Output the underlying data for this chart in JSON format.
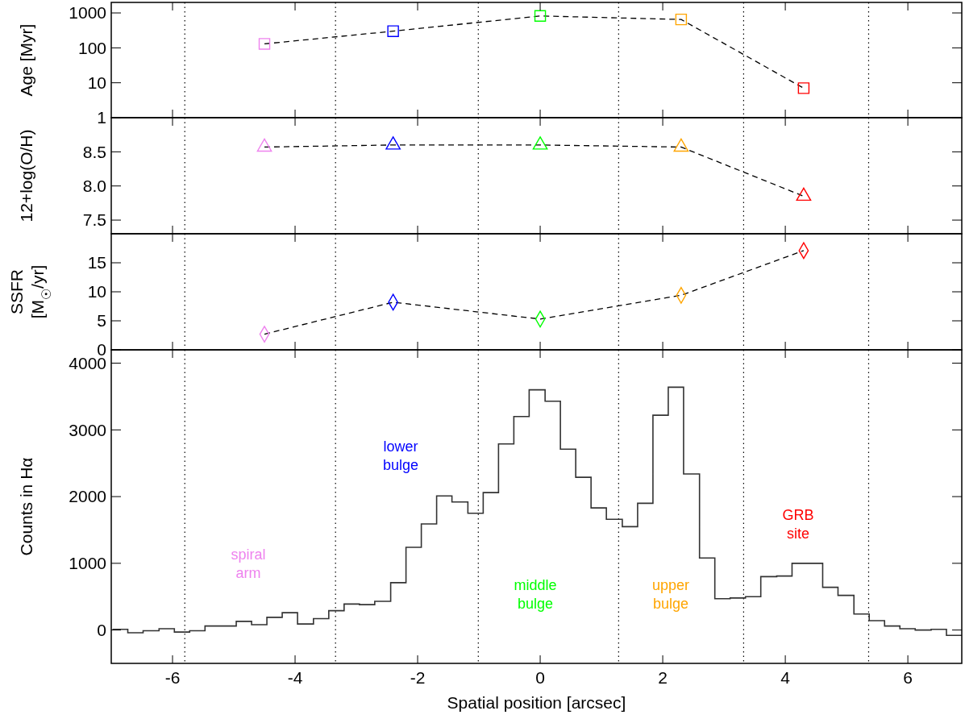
{
  "chart_data": [
    {
      "type": "line",
      "ylabel": "Age [Myr]",
      "x": [
        -4.5,
        -2.4,
        0,
        2.3,
        4.3
      ],
      "values": [
        130,
        300,
        820,
        650,
        7
      ],
      "color": "#000000",
      "colors": [
        "#ee82ee",
        "#0000ff",
        "#00ff00",
        "#ffa500",
        "#ff0000"
      ],
      "marker": "square",
      "line_style": "dashed",
      "log": "y",
      "xlim": [
        -7,
        6.88
      ],
      "xticks": [
        -6,
        -4,
        -2,
        0,
        2,
        4,
        6
      ],
      "ylim": [
        1,
        2000
      ],
      "yticks": [
        1,
        10,
        100,
        1000
      ],
      "tick_labels": "y",
      "ref_lines": [
        {
          "axis": "x",
          "value": -5.8,
          "line_style": "dotted"
        },
        {
          "axis": "x",
          "value": -3.34,
          "line_style": "dotted"
        },
        {
          "axis": "x",
          "value": -1.01,
          "line_style": "dotted"
        },
        {
          "axis": "x",
          "value": 1.28,
          "line_style": "dotted"
        },
        {
          "axis": "x",
          "value": 3.32,
          "line_style": "dotted"
        },
        {
          "axis": "x",
          "value": 5.36,
          "line_style": "dotted"
        }
      ]
    },
    {
      "type": "line",
      "ylabel": "12+log(O/H)",
      "x": [
        -4.5,
        -2.4,
        0,
        2.3,
        4.3
      ],
      "values": [
        8.57,
        8.6,
        8.6,
        8.57,
        7.85
      ],
      "color": "#000000",
      "colors": [
        "#ee82ee",
        "#0000ff",
        "#00ff00",
        "#ffa500",
        "#ff0000"
      ],
      "marker": "triangle",
      "line_style": "dashed",
      "xlim": [
        -7,
        6.88
      ],
      "xticks": [
        -6,
        -4,
        -2,
        0,
        2,
        4,
        6
      ],
      "ylim": [
        7.3,
        9.0
      ],
      "yticks": [
        7.5,
        {
          "value": 8,
          "label": "8.0"
        },
        8.5
      ],
      "tick_labels": "y",
      "ref_lines": [
        {
          "axis": "x",
          "value": -5.8,
          "line_style": "dotted"
        },
        {
          "axis": "x",
          "value": -3.34,
          "line_style": "dotted"
        },
        {
          "axis": "x",
          "value": -1.01,
          "line_style": "dotted"
        },
        {
          "axis": "x",
          "value": 1.28,
          "line_style": "dotted"
        },
        {
          "axis": "x",
          "value": 3.32,
          "line_style": "dotted"
        },
        {
          "axis": "x",
          "value": 5.36,
          "line_style": "dotted"
        }
      ]
    },
    {
      "type": "line",
      "ylabel": "SSFR\n[M$_{☉}$/yr]",
      "x": [
        -4.5,
        -2.4,
        0,
        2.3,
        4.3
      ],
      "values": [
        2.7,
        8.2,
        5.3,
        9.4,
        17.1
      ],
      "color": "#000000",
      "colors": [
        "#ee82ee",
        "#0000ff",
        "#00ff00",
        "#ffa500",
        "#ff0000"
      ],
      "marker": "diamond",
      "line_style": "dashed",
      "xlim": [
        -7,
        6.88
      ],
      "xticks": [
        -6,
        -4,
        -2,
        0,
        2,
        4,
        6
      ],
      "ylim": [
        0,
        20
      ],
      "yticks": [
        0,
        5,
        10,
        15
      ],
      "tick_labels": "y",
      "ref_lines": [
        {
          "axis": "x",
          "value": -5.8,
          "line_style": "dotted"
        },
        {
          "axis": "x",
          "value": -3.34,
          "line_style": "dotted"
        },
        {
          "axis": "x",
          "value": -1.01,
          "line_style": "dotted"
        },
        {
          "axis": "x",
          "value": 1.28,
          "line_style": "dotted"
        },
        {
          "axis": "x",
          "value": 3.32,
          "line_style": "dotted"
        },
        {
          "axis": "x",
          "value": 5.36,
          "line_style": "dotted"
        }
      ]
    },
    {
      "type": "histogram",
      "xlabel": "Spatial position [arcsec]",
      "ylabel": "Counts in Hα",
      "color": "#333333",
      "bins": [
        -6.98,
        -6.73,
        -6.48,
        -6.22,
        -5.97,
        -5.72,
        -5.47,
        -5.22,
        -4.96,
        -4.71,
        -4.46,
        -4.21,
        -3.96,
        -3.7,
        -3.45,
        -3.2,
        -2.95,
        -2.7,
        -2.44,
        -2.19,
        -1.94,
        -1.69,
        -1.44,
        -1.18,
        -0.93,
        -0.68,
        -0.43,
        -0.18,
        0.08,
        0.33,
        0.58,
        0.83,
        1.08,
        1.34,
        1.59,
        1.84,
        2.09,
        2.34,
        2.6,
        2.85,
        3.1,
        3.35,
        3.6,
        3.86,
        4.11,
        4.36,
        4.61,
        4.86,
        5.12,
        5.37,
        5.62,
        5.87,
        6.12,
        6.38,
        6.63,
        6.88
      ],
      "values": [
        10,
        -40,
        -10,
        20,
        -30,
        -10,
        60,
        60,
        130,
        80,
        190,
        260,
        90,
        170,
        290,
        390,
        380,
        430,
        710,
        1240,
        1590,
        2010,
        1920,
        1750,
        2060,
        2790,
        3200,
        3600,
        3430,
        2710,
        2290,
        1830,
        1660,
        1550,
        1900,
        3220,
        3640,
        2340,
        1080,
        470,
        480,
        500,
        800,
        810,
        1000,
        1000,
        640,
        520,
        240,
        140,
        60,
        20,
        0,
        10,
        -80
      ],
      "xlim": [
        -7,
        6.88
      ],
      "xticks": [
        -6,
        -4,
        -2,
        0,
        2,
        4,
        6
      ],
      "ylim": [
        -500,
        4200
      ],
      "yticks": [
        0,
        1000,
        2000,
        3000,
        4000
      ],
      "ref_lines": [
        {
          "axis": "x",
          "value": -5.8,
          "line_style": "dotted"
        },
        {
          "axis": "x",
          "value": -3.34,
          "line_style": "dotted"
        },
        {
          "axis": "x",
          "value": -1.01,
          "line_style": "dotted"
        },
        {
          "axis": "x",
          "value": 1.28,
          "line_style": "dotted"
        },
        {
          "axis": "x",
          "value": 3.32,
          "line_style": "dotted"
        },
        {
          "axis": "x",
          "value": 5.36,
          "line_style": "dotted"
        }
      ],
      "annotations": [
        "spiral\narm",
        "lower\nbulge",
        "middle\nbulge",
        "upper\nbulge",
        "GRB\nsite"
      ]
    }
  ]
}
